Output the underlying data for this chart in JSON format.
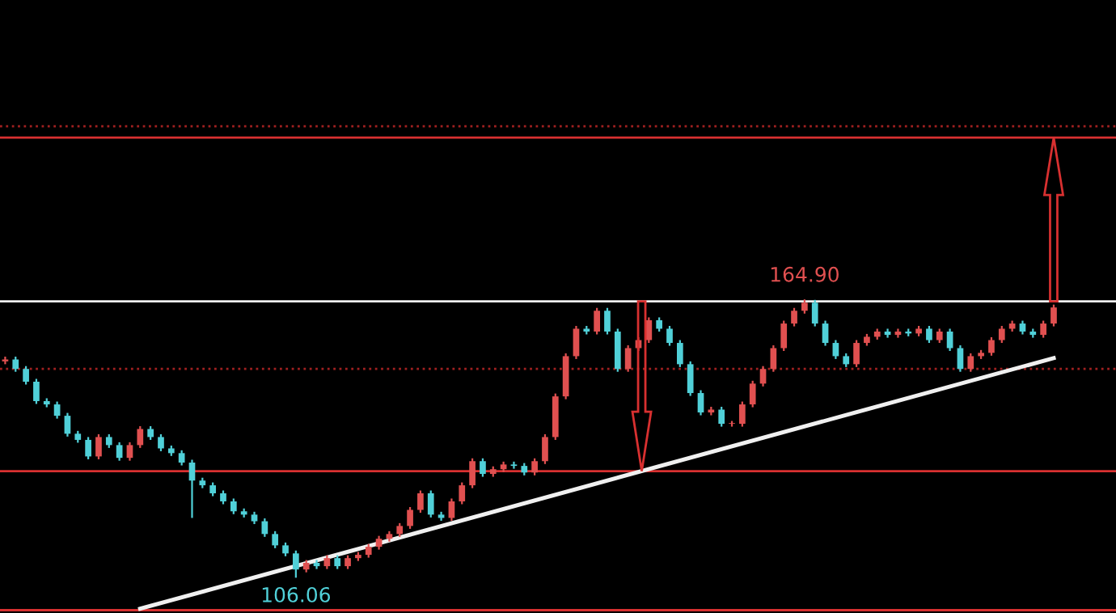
{
  "chart_data": {
    "type": "candlestick",
    "categories": [
      null,
      null,
      null,
      null,
      null,
      null,
      null,
      null,
      null,
      null,
      null,
      null,
      null,
      null,
      null,
      null,
      null,
      null,
      null,
      null,
      null,
      null,
      null,
      null,
      null,
      null,
      null,
      null,
      null,
      null,
      null,
      null,
      null,
      null,
      null,
      null,
      null,
      null,
      null,
      null,
      null,
      null,
      null,
      null,
      null,
      null,
      null,
      null,
      null,
      null,
      null,
      null,
      null,
      null,
      null,
      null,
      null,
      null,
      null,
      null,
      null,
      null,
      null,
      null,
      null,
      null,
      null,
      null,
      null,
      null,
      null,
      null,
      null,
      null,
      null,
      null,
      null,
      null,
      null,
      null,
      null,
      null,
      null,
      null,
      null,
      null,
      null,
      null,
      null,
      null,
      null,
      null,
      null,
      null,
      null,
      null,
      null,
      null,
      null,
      null,
      null,
      null
    ],
    "ohlc": [
      [
        151.8,
        152.8,
        151.2,
        152.2
      ],
      [
        152.2,
        152.8,
        149.6,
        150.2
      ],
      [
        150.2,
        150.8,
        146.9,
        147.5
      ],
      [
        147.5,
        148.1,
        142.8,
        143.4
      ],
      [
        143.4,
        144.0,
        142.1,
        142.7
      ],
      [
        142.7,
        143.3,
        139.7,
        140.3
      ],
      [
        140.3,
        140.9,
        135.9,
        136.5
      ],
      [
        136.5,
        137.1,
        134.6,
        135.2
      ],
      [
        135.2,
        135.8,
        131.1,
        131.7
      ],
      [
        131.7,
        136.4,
        131.1,
        135.8
      ],
      [
        135.8,
        136.4,
        133.5,
        134.1
      ],
      [
        134.1,
        134.7,
        130.8,
        131.4
      ],
      [
        131.4,
        134.7,
        130.8,
        134.1
      ],
      [
        134.1,
        138.1,
        133.5,
        137.5
      ],
      [
        137.5,
        138.1,
        135.2,
        135.8
      ],
      [
        135.8,
        136.4,
        132.8,
        133.4
      ],
      [
        133.4,
        134.0,
        131.8,
        132.4
      ],
      [
        132.4,
        133.0,
        129.8,
        130.4
      ],
      [
        130.4,
        131.0,
        118.7,
        126.6
      ],
      [
        126.6,
        127.2,
        125.0,
        125.6
      ],
      [
        125.6,
        126.2,
        123.3,
        123.9
      ],
      [
        123.9,
        124.5,
        121.6,
        122.2
      ],
      [
        122.2,
        122.8,
        119.5,
        120.1
      ],
      [
        120.1,
        120.7,
        118.8,
        119.4
      ],
      [
        119.4,
        120.0,
        117.4,
        118.0
      ],
      [
        118.0,
        118.6,
        114.7,
        115.3
      ],
      [
        115.3,
        115.9,
        112.3,
        112.9
      ],
      [
        112.9,
        113.5,
        110.6,
        111.2
      ],
      [
        111.2,
        111.8,
        106.06,
        107.8
      ],
      [
        107.8,
        109.8,
        107.2,
        109.2
      ],
      [
        109.2,
        109.8,
        107.9,
        108.5
      ],
      [
        108.5,
        110.8,
        107.9,
        110.2
      ],
      [
        110.2,
        110.8,
        107.9,
        108.5
      ],
      [
        108.5,
        110.8,
        107.9,
        110.2
      ],
      [
        110.2,
        111.5,
        109.6,
        110.9
      ],
      [
        110.9,
        113.2,
        110.3,
        112.6
      ],
      [
        112.6,
        114.9,
        112.0,
        114.3
      ],
      [
        114.3,
        115.9,
        113.7,
        115.3
      ],
      [
        115.3,
        117.6,
        114.7,
        117.0
      ],
      [
        117.0,
        121.0,
        116.4,
        120.4
      ],
      [
        120.4,
        124.5,
        119.8,
        123.9
      ],
      [
        123.9,
        124.5,
        118.8,
        119.4
      ],
      [
        119.4,
        120.0,
        118.1,
        118.7
      ],
      [
        118.7,
        122.8,
        118.1,
        122.2
      ],
      [
        122.2,
        126.2,
        121.6,
        125.6
      ],
      [
        125.6,
        131.3,
        125.0,
        130.7
      ],
      [
        130.7,
        131.3,
        127.4,
        128.0
      ],
      [
        128.0,
        129.6,
        127.4,
        129.0
      ],
      [
        129.0,
        130.6,
        128.4,
        130.0
      ],
      [
        130.0,
        130.6,
        129.1,
        129.7
      ],
      [
        129.7,
        130.3,
        127.7,
        128.3
      ],
      [
        128.3,
        131.3,
        127.7,
        130.7
      ],
      [
        130.7,
        136.4,
        130.1,
        135.8
      ],
      [
        135.8,
        145.0,
        135.2,
        144.4
      ],
      [
        144.4,
        153.5,
        143.8,
        152.9
      ],
      [
        152.9,
        159.3,
        152.3,
        158.7
      ],
      [
        158.7,
        159.3,
        157.5,
        158.1
      ],
      [
        158.1,
        163.1,
        157.5,
        162.5
      ],
      [
        162.5,
        163.1,
        157.5,
        158.1
      ],
      [
        158.1,
        158.7,
        149.6,
        150.2
      ],
      [
        150.2,
        155.2,
        149.6,
        154.6
      ],
      [
        154.6,
        156.9,
        154.0,
        156.3
      ],
      [
        156.3,
        161.1,
        155.7,
        160.5
      ],
      [
        160.5,
        161.1,
        158.1,
        158.7
      ],
      [
        158.7,
        159.3,
        155.1,
        155.7
      ],
      [
        155.7,
        156.3,
        150.6,
        151.2
      ],
      [
        151.2,
        151.8,
        144.5,
        145.1
      ],
      [
        145.1,
        145.7,
        140.4,
        141.0
      ],
      [
        141.0,
        142.2,
        140.4,
        141.6
      ],
      [
        141.6,
        142.2,
        138.0,
        138.6
      ],
      [
        138.6,
        139.2,
        138.0,
        138.6
      ],
      [
        138.6,
        143.3,
        138.0,
        142.7
      ],
      [
        142.7,
        147.7,
        142.1,
        147.1
      ],
      [
        147.1,
        150.8,
        146.5,
        150.2
      ],
      [
        150.2,
        155.2,
        149.6,
        154.6
      ],
      [
        154.6,
        160.4,
        154.0,
        159.8
      ],
      [
        159.8,
        163.1,
        159.2,
        162.5
      ],
      [
        162.5,
        164.9,
        161.9,
        164.2
      ],
      [
        164.2,
        164.8,
        159.2,
        159.8
      ],
      [
        159.8,
        160.4,
        155.1,
        155.7
      ],
      [
        155.7,
        156.3,
        152.3,
        152.9
      ],
      [
        152.9,
        153.5,
        150.6,
        151.2
      ],
      [
        151.2,
        156.3,
        150.6,
        155.7
      ],
      [
        155.7,
        157.6,
        155.1,
        157.0
      ],
      [
        157.0,
        158.7,
        156.4,
        158.1
      ],
      [
        158.1,
        158.7,
        156.8,
        157.4
      ],
      [
        157.4,
        158.7,
        156.8,
        158.1
      ],
      [
        158.1,
        158.7,
        157.1,
        157.7
      ],
      [
        157.7,
        159.3,
        157.1,
        158.7
      ],
      [
        158.7,
        159.3,
        155.7,
        156.3
      ],
      [
        156.3,
        158.7,
        155.7,
        158.1
      ],
      [
        158.1,
        158.7,
        154.0,
        154.6
      ],
      [
        154.6,
        155.2,
        149.6,
        150.2
      ],
      [
        150.2,
        153.5,
        149.6,
        152.9
      ],
      [
        152.9,
        154.2,
        152.3,
        153.6
      ],
      [
        153.6,
        156.9,
        153.0,
        156.3
      ],
      [
        156.3,
        159.3,
        155.7,
        158.7
      ],
      [
        158.7,
        160.4,
        158.1,
        159.8
      ],
      [
        159.8,
        160.4,
        157.5,
        158.1
      ],
      [
        158.1,
        158.7,
        156.8,
        157.4
      ],
      [
        157.4,
        160.4,
        156.8,
        159.8
      ],
      [
        159.8,
        163.8,
        159.2,
        163.2
      ]
    ],
    "series": [
      {
        "type": "line",
        "color": "#f0f0f0",
        "values": [
          null,
          null,
          null,
          null,
          null,
          null,
          null,
          null,
          null,
          null,
          null,
          null,
          null,
          99.5,
          null,
          null,
          null,
          null,
          null,
          null,
          null,
          null,
          null,
          null,
          null,
          null,
          null,
          null,
          null,
          null,
          null,
          null,
          null,
          null,
          null,
          null,
          null,
          null,
          null,
          null,
          null,
          null,
          null,
          null,
          null,
          null,
          null,
          null,
          null,
          null,
          null,
          null,
          null,
          null,
          null,
          null,
          null,
          null,
          null,
          null,
          null,
          null,
          null,
          null,
          null,
          null,
          null,
          null,
          null,
          null,
          null,
          null,
          null,
          null,
          null,
          null,
          null,
          null,
          null,
          null,
          null,
          null,
          null,
          null,
          null,
          null,
          null,
          null,
          null,
          null,
          null,
          null,
          null,
          null,
          null,
          null,
          null,
          null,
          null,
          null,
          null,
          152.5
        ]
      }
    ],
    "ylim": [
      98.6,
      228.2
    ],
    "tick_labels": false,
    "ref_lines": [
      {
        "axis": "y",
        "value": 164.5,
        "color": "#f0f0f0",
        "line_style": "solid"
      },
      {
        "axis": "y",
        "value": 199.1,
        "color": "#d83030",
        "line_style": "solid"
      },
      {
        "axis": "y",
        "value": 201.5,
        "color": "#a02020",
        "line_style": "dotted"
      },
      {
        "axis": "y",
        "value": 150.2,
        "color": "#a02020",
        "line_style": "dotted"
      },
      {
        "axis": "y",
        "value": 128.6,
        "color": "#d83030",
        "line_style": "solid"
      },
      {
        "axis": "y",
        "value": 99.2,
        "color": "#d83030",
        "line_style": "solid"
      }
    ],
    "annotations": [
      {
        "text": "164.90",
        "y": 164.9
      },
      {
        "text": "106.06",
        "y": 106.06
      }
    ]
  }
}
